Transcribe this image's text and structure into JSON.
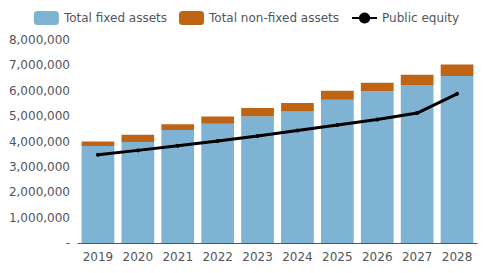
{
  "chart_data": {
    "type": "bar",
    "categories": [
      "2019",
      "2020",
      "2021",
      "2022",
      "2023",
      "2024",
      "2025",
      "2026",
      "2027",
      "2028"
    ],
    "series": [
      {
        "name": "Total fixed assets",
        "type": "bar",
        "color": "#7fb3d3",
        "values": [
          3820000,
          3980000,
          4450000,
          4700000,
          5000000,
          5180000,
          5650000,
          5980000,
          6230000,
          6580000
        ]
      },
      {
        "name": "Total non-fixed assets",
        "type": "bar",
        "color": "#bf6415",
        "values": [
          180000,
          290000,
          230000,
          290000,
          320000,
          340000,
          350000,
          340000,
          400000,
          450000
        ]
      },
      {
        "name": "Public equity",
        "type": "line",
        "color": "#000000",
        "values": [
          3480000,
          3650000,
          3830000,
          4020000,
          4220000,
          4430000,
          4650000,
          4870000,
          5120000,
          5880000
        ]
      }
    ],
    "stacked": true,
    "ylim": [
      0,
      8000000
    ],
    "yticks": [
      {
        "value": 0,
        "label": "-"
      },
      {
        "value": 1000000,
        "label": "1,000,000"
      },
      {
        "value": 2000000,
        "label": "2,000,000"
      },
      {
        "value": 3000000,
        "label": "3,000,000"
      },
      {
        "value": 4000000,
        "label": "4,000,000"
      },
      {
        "value": 5000000,
        "label": "5,000,000"
      },
      {
        "value": 6000000,
        "label": "6,000,000"
      },
      {
        "value": 7000000,
        "label": "7,000,000"
      },
      {
        "value": 8000000,
        "label": "8,000,000"
      }
    ],
    "grid": false,
    "legend": "top"
  }
}
